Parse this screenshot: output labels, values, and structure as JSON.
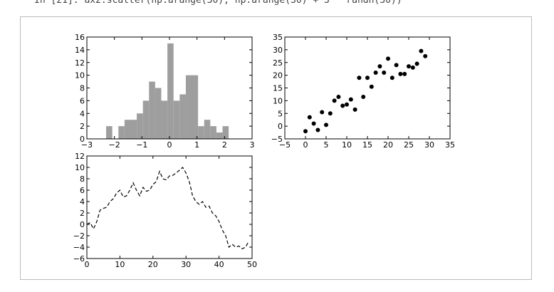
{
  "header": {
    "code": "In [21]: ax2.scatter(np.arange(30), np.arange(30) + 3 * randn(30))"
  },
  "chart_data": [
    {
      "type": "histogram",
      "color": "#9e9e9e",
      "bins": [
        -2.3,
        -2.078,
        -1.855,
        -1.633,
        -1.41,
        -1.188,
        -0.965,
        -0.743,
        -0.52,
        -0.298,
        -0.075,
        0.148,
        0.37,
        0.593,
        0.815,
        1.038,
        1.26,
        1.483,
        1.705,
        1.928,
        2.15
      ],
      "values": [
        2,
        0,
        2,
        3,
        3,
        4,
        6,
        9,
        8,
        6,
        15,
        6,
        7,
        10,
        10,
        2,
        3,
        2,
        1,
        2
      ],
      "xlim": [
        -3,
        3
      ],
      "xticks": [
        {
          "value": -3,
          "label": "−3"
        },
        {
          "value": -2,
          "label": "−2"
        },
        {
          "value": -1,
          "label": "−1"
        },
        0,
        1,
        2,
        3
      ],
      "ylim": [
        0,
        16
      ],
      "yticks": [
        0,
        2,
        4,
        6,
        8,
        10,
        12,
        14,
        16
      ]
    },
    {
      "type": "scatter",
      "color": "#000000",
      "x": [
        0,
        1,
        2,
        3,
        4,
        5,
        6,
        7,
        8,
        9,
        10,
        11,
        12,
        13,
        14,
        15,
        16,
        17,
        18,
        19,
        20,
        21,
        22,
        23,
        24,
        25,
        26,
        27,
        28,
        29
      ],
      "values": [
        -2,
        3.5,
        1,
        -1.5,
        5.5,
        0.5,
        5,
        10,
        11.5,
        8,
        8.5,
        10.5,
        6.5,
        19,
        11.5,
        19,
        15.5,
        21,
        23.5,
        21,
        26.5,
        19,
        24,
        20.5,
        20.5,
        23.5,
        23,
        24.5,
        29.5,
        27.5
      ],
      "xlim": [
        -5,
        35
      ],
      "xticks": [
        {
          "value": -5,
          "label": "−5"
        },
        0,
        5,
        10,
        15,
        20,
        25,
        30,
        35
      ],
      "ylim": [
        -5,
        35
      ],
      "yticks": [
        {
          "value": -5,
          "label": "−5"
        },
        0,
        5,
        10,
        15,
        20,
        25,
        30,
        35
      ]
    },
    {
      "type": "line",
      "color": "#000000",
      "linestyle": "dashed",
      "x": [
        0,
        1,
        2,
        3,
        4,
        5,
        6,
        7,
        8,
        9,
        10,
        11,
        12,
        13,
        14,
        15,
        16,
        17,
        18,
        19,
        20,
        21,
        22,
        23,
        24,
        25,
        26,
        27,
        28,
        29,
        30,
        31,
        32,
        33,
        34,
        35,
        36,
        37,
        38,
        39,
        40,
        41,
        42,
        43,
        44,
        45,
        46,
        47,
        48,
        49
      ],
      "values": [
        0,
        0.3,
        -0.8,
        0.5,
        2.5,
        2.8,
        3,
        4,
        4.5,
        5.5,
        6,
        4.8,
        5,
        6,
        7.3,
        6,
        5,
        6.5,
        5.8,
        6,
        7,
        7.5,
        9.3,
        8,
        7.8,
        8.5,
        8.6,
        9,
        9.5,
        10,
        9,
        7.5,
        5,
        4,
        3.5,
        4,
        3,
        3.2,
        2,
        1.5,
        0.5,
        -1,
        -2,
        -4,
        -3.5,
        -4,
        -3.8,
        -4.3,
        -4,
        -3
      ],
      "xlim": [
        0,
        50
      ],
      "xticks": [
        0,
        10,
        20,
        30,
        40,
        50
      ],
      "ylim": [
        -6,
        12
      ],
      "yticks": [
        {
          "value": -6,
          "label": "−6"
        },
        {
          "value": -4,
          "label": "−4"
        },
        {
          "value": -2,
          "label": "−2"
        },
        0,
        2,
        4,
        6,
        8,
        10,
        12
      ]
    }
  ]
}
